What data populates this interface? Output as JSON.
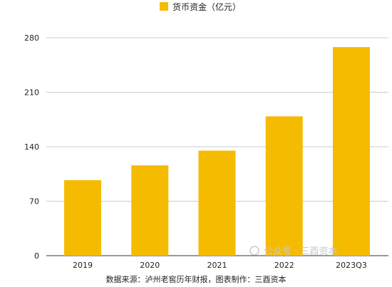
{
  "chart_data": {
    "type": "bar",
    "categories": [
      "2019",
      "2020",
      "2021",
      "2022",
      "2023Q3"
    ],
    "series": [
      {
        "name": "货币资金（亿元）",
        "values": [
          97,
          116,
          135,
          179,
          268
        ],
        "color": "#F5BB00"
      }
    ],
    "ylim": [
      0,
      280
    ],
    "yticks": [
      0,
      70,
      140,
      210,
      280
    ],
    "grid": true,
    "legend": "top-center",
    "source_note": "数据来源：泸州老窖历年财报，图表制作：三酉资本"
  },
  "watermark": {
    "text": "公众号 · 三酉资本"
  }
}
